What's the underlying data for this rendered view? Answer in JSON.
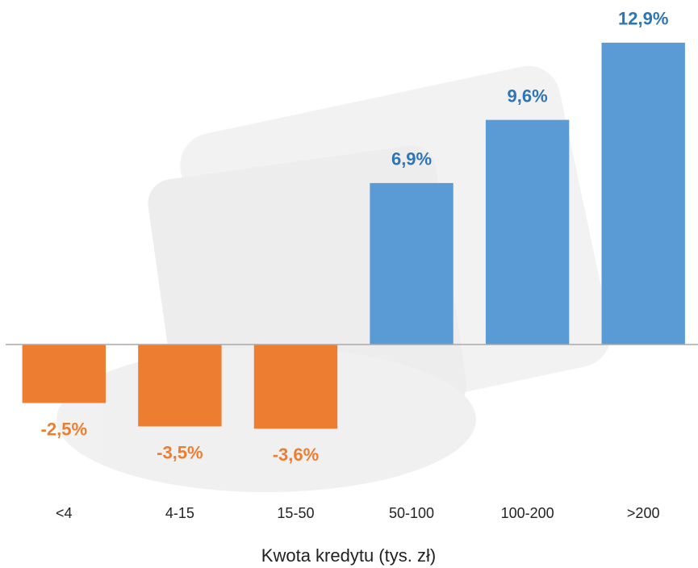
{
  "chart_data": {
    "type": "bar",
    "x_label": "Kwota kredytu (tys. zł)",
    "categories": [
      "<4",
      "4-15",
      "15-50",
      "50-100",
      "100-200",
      ">200"
    ],
    "values": [
      -2.5,
      -3.5,
      -3.6,
      6.9,
      9.6,
      12.9
    ],
    "value_labels": [
      "-2,5%",
      "-3,5%",
      "-3,6%",
      "6,9%",
      "9,6%",
      "12,9%"
    ],
    "colors": [
      "#ed7d31",
      "#ed7d31",
      "#ed7d31",
      "#5b9bd5",
      "#5b9bd5",
      "#5b9bd5"
    ],
    "label_colors": [
      "#ed7d31",
      "#ed7d31",
      "#ed7d31",
      "#2e75b6",
      "#2e75b6",
      "#2e75b6"
    ],
    "ylim": [
      -6,
      14
    ]
  }
}
